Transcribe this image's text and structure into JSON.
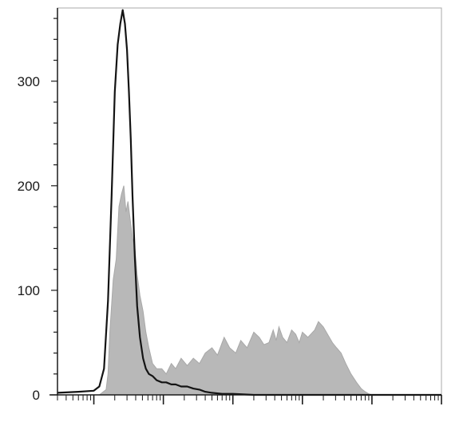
{
  "chart_data": {
    "type": "area",
    "title": "",
    "xlabel": "",
    "ylabel": "",
    "xscale": "log",
    "xlim": [
      0.3,
      100000
    ],
    "ylim": [
      0,
      370
    ],
    "yticks": [
      0,
      100,
      200,
      300
    ],
    "grid": false,
    "legend": "none",
    "series": [
      {
        "style": "filled",
        "color": "#b8b8b8",
        "x": [
          0.3,
          1.2,
          1.5,
          1.6,
          1.7,
          1.9,
          2.1,
          2.3,
          2.5,
          2.7,
          2.9,
          3.1,
          3.3,
          3.6,
          3.9,
          4.2,
          4.6,
          5.1,
          5.6,
          6.2,
          7.0,
          8.0,
          9.5,
          11,
          13,
          15,
          18,
          22,
          27,
          33,
          40,
          50,
          60,
          75,
          90,
          110,
          130,
          160,
          200,
          240,
          280,
          330,
          380,
          420,
          460,
          520,
          600,
          700,
          800,
          900,
          1000,
          1200,
          1500,
          1700,
          2000,
          2300,
          2700,
          3100,
          3600,
          4200,
          5000,
          6000,
          7000,
          8000,
          9000,
          10000,
          15000,
          100000
        ],
        "y": [
          0,
          0,
          5,
          20,
          60,
          110,
          130,
          180,
          192,
          200,
          175,
          185,
          170,
          150,
          140,
          115,
          95,
          80,
          60,
          45,
          30,
          25,
          25,
          20,
          30,
          25,
          35,
          28,
          35,
          30,
          40,
          45,
          38,
          55,
          45,
          40,
          52,
          45,
          60,
          55,
          48,
          50,
          62,
          52,
          65,
          55,
          50,
          62,
          58,
          50,
          60,
          55,
          62,
          70,
          65,
          58,
          50,
          45,
          40,
          30,
          20,
          12,
          6,
          3,
          1,
          0,
          0,
          0
        ]
      },
      {
        "style": "line",
        "color": "#141414",
        "x": [
          0.3,
          0.6,
          1.0,
          1.2,
          1.4,
          1.6,
          1.8,
          2.0,
          2.2,
          2.4,
          2.6,
          2.8,
          3.0,
          3.2,
          3.4,
          3.6,
          3.9,
          4.2,
          4.6,
          5.1,
          5.6,
          6.2,
          7.0,
          8.0,
          9.5,
          11,
          13,
          15,
          18,
          22,
          27,
          33,
          40,
          50,
          70,
          100,
          200,
          1000,
          100000
        ],
        "y": [
          2,
          3,
          4,
          8,
          25,
          90,
          190,
          290,
          335,
          355,
          368,
          355,
          330,
          290,
          245,
          190,
          130,
          85,
          55,
          35,
          25,
          20,
          18,
          14,
          12,
          12,
          10,
          10,
          8,
          8,
          6,
          5,
          3,
          2,
          1,
          1,
          0,
          0,
          0
        ]
      }
    ]
  }
}
